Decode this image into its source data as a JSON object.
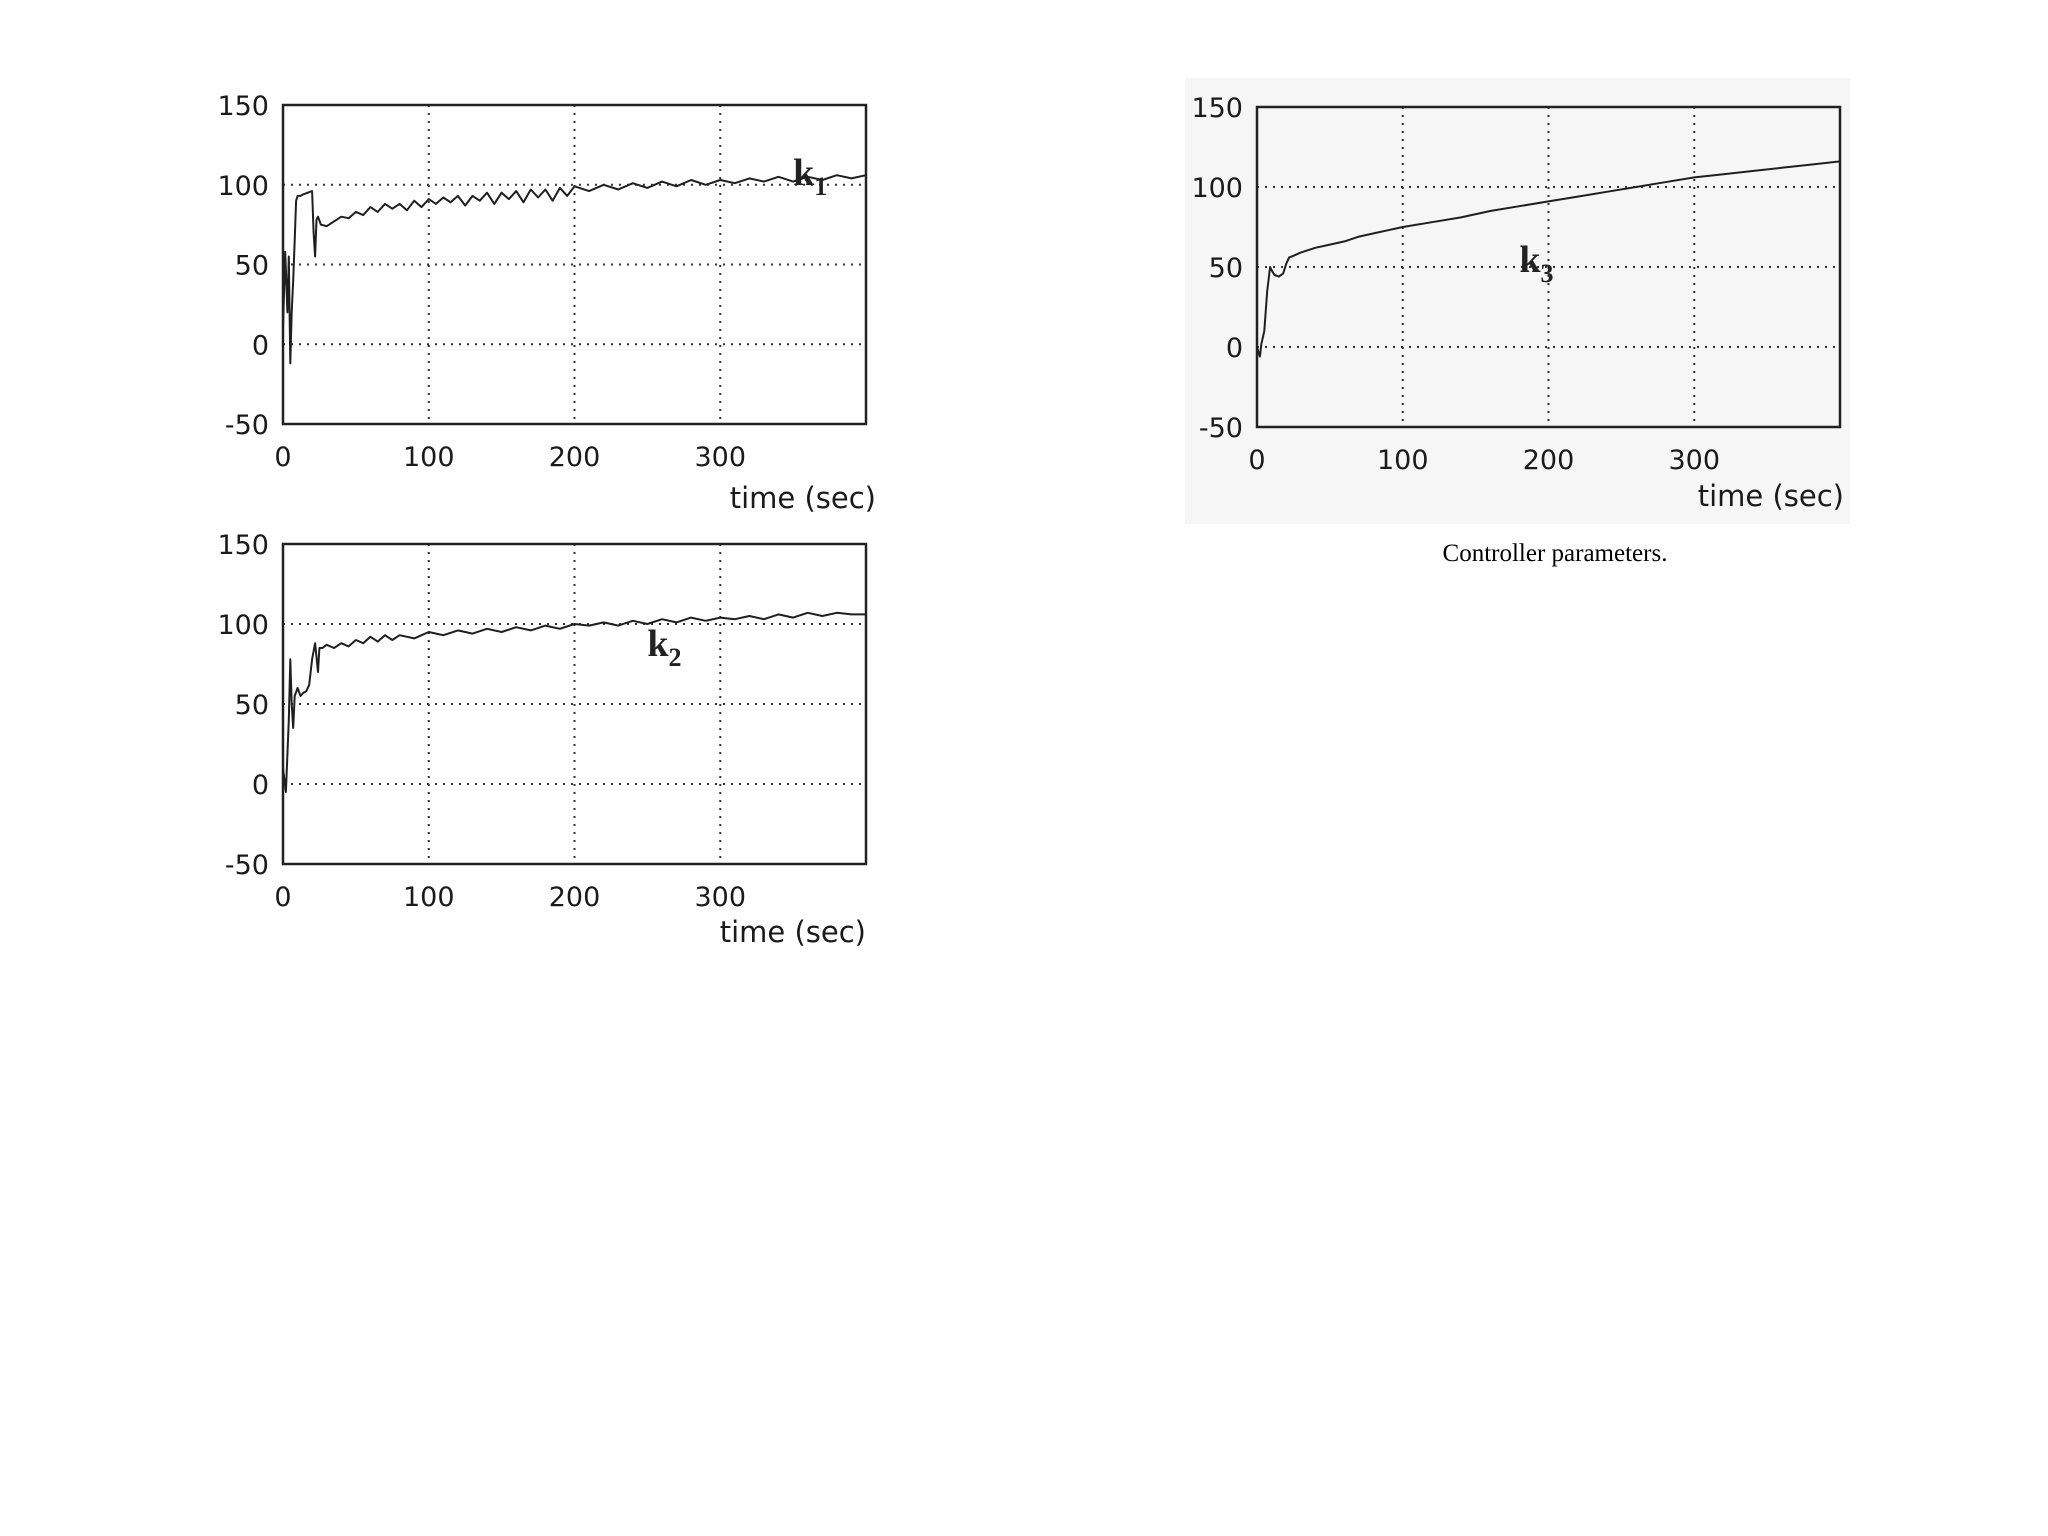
{
  "caption": "Controller parameters.",
  "chart_data": [
    {
      "type": "line",
      "xlabel": "time (sec)",
      "ylabel": "",
      "xlim": [
        0,
        400
      ],
      "ylim": [
        -50,
        150
      ],
      "xticks": [
        "0",
        "100",
        "200",
        "300"
      ],
      "yticks": [
        "-50",
        "0",
        "50",
        "100",
        "150"
      ],
      "grid": true,
      "series": [
        {
          "name": "k",
          "subscript": "1",
          "x": [
            0,
            1.5,
            3,
            4,
            5,
            6,
            7,
            8,
            9,
            10,
            12,
            14,
            17,
            20,
            21,
            22,
            23,
            24,
            26,
            30,
            35,
            40,
            45,
            50,
            55,
            60,
            65,
            70,
            75,
            80,
            85,
            90,
            95,
            100,
            105,
            110,
            115,
            120,
            125,
            130,
            135,
            140,
            145,
            150,
            155,
            160,
            165,
            170,
            175,
            180,
            185,
            190,
            195,
            200,
            210,
            220,
            230,
            240,
            250,
            260,
            270,
            280,
            290,
            300,
            310,
            320,
            330,
            340,
            350,
            360,
            370,
            380,
            390,
            400
          ],
          "y": [
            10,
            58,
            20,
            55,
            -12,
            20,
            40,
            65,
            90,
            93,
            93,
            94,
            95,
            96,
            70,
            55,
            78,
            80,
            75,
            74,
            77,
            80,
            79,
            83,
            81,
            86,
            83,
            88,
            85,
            88,
            84,
            90,
            86,
            91,
            88,
            92,
            89,
            93,
            87,
            93,
            90,
            95,
            88,
            95,
            91,
            96,
            89,
            97,
            92,
            97,
            90,
            98,
            93,
            99,
            96,
            100,
            97,
            101,
            98,
            102,
            99,
            103,
            100,
            103,
            101,
            104,
            102,
            105,
            102,
            105,
            103,
            106,
            104,
            106
          ]
        }
      ]
    },
    {
      "type": "line",
      "xlabel": "time (sec)",
      "ylabel": "",
      "xlim": [
        0,
        400
      ],
      "ylim": [
        -50,
        150
      ],
      "xticks": [
        "0",
        "100",
        "200",
        "300"
      ],
      "yticks": [
        "-50",
        "0",
        "50",
        "100",
        "150"
      ],
      "grid": true,
      "series": [
        {
          "name": "k",
          "subscript": "2",
          "x": [
            0,
            2,
            4,
            5,
            6,
            7,
            8,
            10,
            12,
            14,
            16,
            18,
            20,
            22,
            24,
            25,
            27,
            30,
            35,
            40,
            45,
            50,
            55,
            60,
            65,
            70,
            75,
            80,
            90,
            100,
            110,
            120,
            130,
            140,
            150,
            160,
            170,
            180,
            190,
            200,
            210,
            220,
            230,
            240,
            250,
            260,
            270,
            280,
            290,
            300,
            310,
            320,
            330,
            340,
            350,
            360,
            370,
            380,
            390,
            400
          ],
          "y": [
            10,
            -5,
            40,
            78,
            50,
            35,
            55,
            60,
            55,
            57,
            58,
            62,
            78,
            88,
            70,
            85,
            85,
            87,
            85,
            88,
            86,
            90,
            88,
            92,
            89,
            93,
            90,
            93,
            91,
            95,
            93,
            96,
            94,
            97,
            95,
            98,
            96,
            99,
            97,
            100,
            99,
            101,
            99,
            102,
            100,
            103,
            101,
            104,
            102,
            104,
            103,
            105,
            103,
            106,
            104,
            107,
            105,
            107,
            106,
            106
          ]
        }
      ]
    },
    {
      "type": "line",
      "xlabel": "time (sec)",
      "ylabel": "",
      "xlim": [
        0,
        400
      ],
      "ylim": [
        -50,
        150
      ],
      "xticks": [
        "0",
        "100",
        "200",
        "300"
      ],
      "yticks": [
        "-50",
        "0",
        "50",
        "100",
        "150"
      ],
      "grid": true,
      "series": [
        {
          "name": "k",
          "subscript": "3",
          "x": [
            0,
            2,
            3,
            5,
            7,
            9,
            10,
            12,
            15,
            18,
            20,
            22,
            25,
            30,
            40,
            50,
            60,
            70,
            80,
            90,
            100,
            120,
            140,
            160,
            180,
            200,
            220,
            240,
            260,
            280,
            300,
            320,
            340,
            360,
            380,
            400
          ],
          "y": [
            0,
            -6,
            2,
            10,
            35,
            50,
            48,
            45,
            44,
            46,
            52,
            56,
            57,
            59,
            62,
            64,
            66,
            69,
            71,
            73,
            75,
            78,
            81,
            85,
            88,
            91,
            94,
            97,
            100,
            103,
            106,
            108,
            110,
            112,
            114,
            116
          ]
        }
      ]
    }
  ]
}
